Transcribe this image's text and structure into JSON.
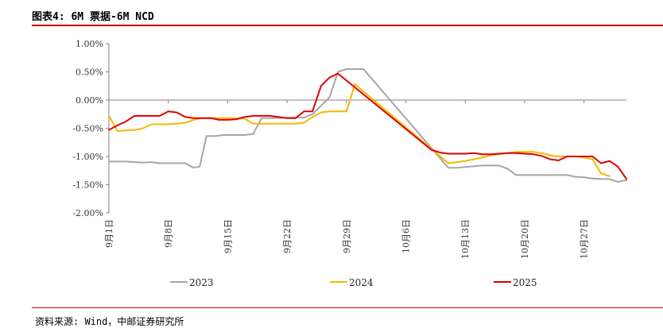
{
  "header": {
    "title": "图表4: 6M 票据-6M NCD"
  },
  "footer": {
    "source": "资料来源: Wind，中邮证券研究所"
  },
  "colors": {
    "accent_rule": "#c00000"
  },
  "chart_data": {
    "type": "line",
    "title": "图表4: 6M 票据-6M NCD",
    "xlabel": "",
    "ylabel": "",
    "ylim": [
      -2.0,
      1.0
    ],
    "yticks": [
      "1.00%",
      "0.50%",
      "0.00%",
      "-0.50%",
      "-1.00%",
      "-1.50%",
      "-2.00%"
    ],
    "ytick_values": [
      1.0,
      0.5,
      0.0,
      -0.5,
      -1.0,
      -1.5,
      -2.0
    ],
    "x_unit": "day of period (9月1日 = 1)",
    "xlim": [
      1,
      62
    ],
    "xticks": [
      "9月1日",
      "9月8日",
      "9月15日",
      "9月22日",
      "9月29日",
      "10月6日",
      "10月13日",
      "10月20日",
      "10月27日"
    ],
    "xtick_values": [
      1,
      8,
      15,
      22,
      29,
      36,
      43,
      50,
      57
    ],
    "grid": false,
    "legend_position": "bottom",
    "series": [
      {
        "name": "2023",
        "color": "#a6a6a6",
        "points": [
          [
            1,
            -1.09
          ],
          [
            2,
            -1.09
          ],
          [
            3,
            -1.09
          ],
          [
            4,
            -1.1
          ],
          [
            5,
            -1.11
          ],
          [
            6,
            -1.1
          ],
          [
            7,
            -1.12
          ],
          [
            8,
            -1.12
          ],
          [
            9,
            -1.12
          ],
          [
            10,
            -1.12
          ],
          [
            11,
            -1.2
          ],
          [
            11.7,
            -1.18
          ],
          [
            12.5,
            -0.64
          ],
          [
            13.5,
            -0.64
          ],
          [
            14.5,
            -0.62
          ],
          [
            17,
            -0.62
          ],
          [
            18,
            -0.6
          ],
          [
            19,
            -0.32
          ],
          [
            20,
            -0.32
          ],
          [
            24,
            -0.31
          ],
          [
            25,
            -0.25
          ],
          [
            26,
            -0.1
          ],
          [
            27,
            0.05
          ],
          [
            28,
            0.5
          ],
          [
            29,
            0.55
          ],
          [
            31,
            0.55
          ],
          [
            41,
            -1.2
          ],
          [
            42,
            -1.2
          ],
          [
            45,
            -1.16
          ],
          [
            47,
            -1.16
          ],
          [
            48,
            -1.22
          ],
          [
            49,
            -1.33
          ],
          [
            51,
            -1.33
          ],
          [
            55,
            -1.33
          ],
          [
            56,
            -1.36
          ],
          [
            57,
            -1.37
          ],
          [
            58,
            -1.39
          ],
          [
            59,
            -1.4
          ],
          [
            60,
            -1.4
          ],
          [
            61,
            -1.45
          ],
          [
            62,
            -1.42
          ]
        ]
      },
      {
        "name": "2024",
        "color": "#f5b800",
        "points": [
          [
            1,
            -0.28
          ],
          [
            2,
            -0.55
          ],
          [
            3,
            -0.54
          ],
          [
            4,
            -0.53
          ],
          [
            5,
            -0.5
          ],
          [
            6,
            -0.43
          ],
          [
            7,
            -0.43
          ],
          [
            8,
            -0.43
          ],
          [
            9,
            -0.42
          ],
          [
            10,
            -0.4
          ],
          [
            11,
            -0.35
          ],
          [
            12,
            -0.32
          ],
          [
            13,
            -0.32
          ],
          [
            15,
            -0.32
          ],
          [
            17,
            -0.33
          ],
          [
            18,
            -0.42
          ],
          [
            19,
            -0.42
          ],
          [
            22,
            -0.42
          ],
          [
            23,
            -0.42
          ],
          [
            24,
            -0.4
          ],
          [
            25,
            -0.3
          ],
          [
            26,
            -0.22
          ],
          [
            27,
            -0.2
          ],
          [
            28,
            -0.2
          ],
          [
            29,
            -0.2
          ],
          [
            30,
            0.28
          ],
          [
            41,
            -1.12
          ],
          [
            42,
            -1.1
          ],
          [
            43,
            -1.08
          ],
          [
            44,
            -1.05
          ],
          [
            45,
            -1.02
          ],
          [
            46,
            -0.98
          ],
          [
            47,
            -0.96
          ],
          [
            48,
            -0.94
          ],
          [
            49,
            -0.92
          ],
          [
            50,
            -0.92
          ],
          [
            51,
            -0.92
          ],
          [
            52,
            -0.94
          ],
          [
            53,
            -0.98
          ],
          [
            54,
            -1.0
          ],
          [
            55,
            -1.0
          ],
          [
            56,
            -1.0
          ],
          [
            57,
            -1.02
          ],
          [
            58,
            -1.05
          ],
          [
            59,
            -1.3
          ],
          [
            60,
            -1.35
          ]
        ]
      },
      {
        "name": "2025",
        "color": "#e00000",
        "points": [
          [
            1,
            -0.53
          ],
          [
            2,
            -0.45
          ],
          [
            3,
            -0.38
          ],
          [
            4,
            -0.28
          ],
          [
            5,
            -0.28
          ],
          [
            6,
            -0.28
          ],
          [
            7,
            -0.28
          ],
          [
            8,
            -0.2
          ],
          [
            9,
            -0.22
          ],
          [
            10,
            -0.3
          ],
          [
            11,
            -0.32
          ],
          [
            12,
            -0.32
          ],
          [
            13,
            -0.32
          ],
          [
            14,
            -0.35
          ],
          [
            15,
            -0.35
          ],
          [
            16,
            -0.34
          ],
          [
            17,
            -0.3
          ],
          [
            18,
            -0.28
          ],
          [
            19,
            -0.28
          ],
          [
            20,
            -0.28
          ],
          [
            21,
            -0.3
          ],
          [
            22,
            -0.32
          ],
          [
            23,
            -0.32
          ],
          [
            24,
            -0.2
          ],
          [
            25,
            -0.2
          ],
          [
            26,
            0.25
          ],
          [
            27,
            0.4
          ],
          [
            28,
            0.47
          ],
          [
            39,
            -0.88
          ],
          [
            40,
            -0.93
          ],
          [
            41,
            -0.95
          ],
          [
            42,
            -0.95
          ],
          [
            43,
            -0.95
          ],
          [
            44,
            -0.94
          ],
          [
            45,
            -0.96
          ],
          [
            46,
            -0.96
          ],
          [
            47,
            -0.95
          ],
          [
            48,
            -0.94
          ],
          [
            49,
            -0.94
          ],
          [
            50,
            -0.95
          ],
          [
            51,
            -0.96
          ],
          [
            52,
            -0.99
          ],
          [
            53,
            -1.05
          ],
          [
            54,
            -1.07
          ],
          [
            55,
            -1.0
          ],
          [
            56,
            -1.0
          ],
          [
            57,
            -1.0
          ],
          [
            58,
            -1.0
          ],
          [
            59,
            -1.12
          ],
          [
            60,
            -1.08
          ],
          [
            61,
            -1.18
          ],
          [
            62,
            -1.4
          ]
        ]
      }
    ]
  }
}
